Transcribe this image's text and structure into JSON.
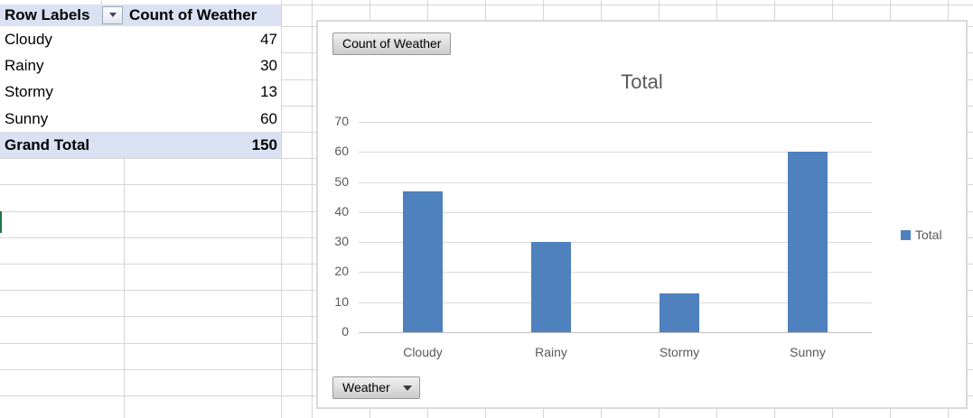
{
  "pivot_table": {
    "columns": [
      "Row Labels",
      "Count of Weather"
    ],
    "rows": [
      {
        "label": "Cloudy",
        "value": "47"
      },
      {
        "label": "Rainy",
        "value": "30"
      },
      {
        "label": "Stormy",
        "value": "13"
      },
      {
        "label": "Sunny",
        "value": "60"
      }
    ],
    "grand_total": {
      "label": "Grand Total",
      "value": "150"
    }
  },
  "chart": {
    "value_field_button": "Count of Weather",
    "axis_field_button": "Weather",
    "title": "Total",
    "legend": [
      {
        "label": "Total",
        "color": "#4e81bd"
      }
    ]
  },
  "chart_data": {
    "type": "bar",
    "title": "Total",
    "categories": [
      "Cloudy",
      "Rainy",
      "Stormy",
      "Sunny"
    ],
    "series": [
      {
        "name": "Total",
        "values": [
          47,
          30,
          13,
          60
        ]
      }
    ],
    "xlabel": "",
    "ylabel": "",
    "ylim": [
      0,
      70
    ],
    "ytick_step": 10,
    "grid": true,
    "legend_position": "right"
  },
  "colors": {
    "bar": "#4e81bd",
    "pivot_header_bg": "#d9e1f2",
    "chart_text": "#595959",
    "sheet_gridline": "#d6d6d6",
    "chart_gridline": "#d9d9d9",
    "axis_line": "#bfbfbf",
    "selection_edge": "#217346"
  }
}
